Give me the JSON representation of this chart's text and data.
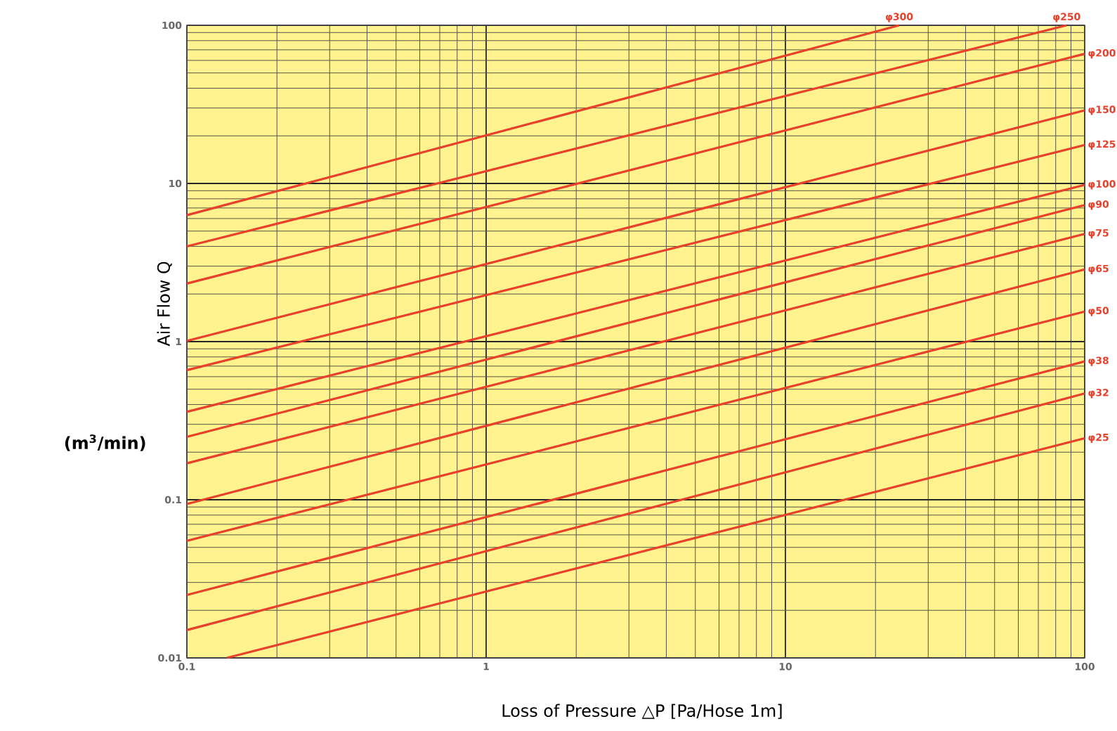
{
  "chart_data": {
    "type": "line",
    "xlabel": "Loss of Pressure △P [Pa/Hose 1m]",
    "ylabel": "Air Flow Q",
    "annotations": [
      "(m$^{3}$/min)"
    ],
    "log": "xy",
    "grid": true,
    "marker": "none",
    "line_style": "solid",
    "xlim": [
      0.1,
      100
    ],
    "ylim": [
      0.01,
      100
    ],
    "xticks": [
      0.1,
      1,
      10,
      100
    ],
    "yticks": [
      0.01,
      0.1,
      1,
      10,
      100
    ],
    "series": [
      {
        "name": "φ300",
        "color": "#e8402a",
        "x": [
          0.1,
          24
        ],
        "values": [
          6.3,
          100
        ]
      },
      {
        "name": "φ250",
        "color": "#e8402a",
        "x": [
          0.1,
          87
        ],
        "values": [
          4.0,
          100
        ]
      },
      {
        "name": "φ200",
        "color": "#e8402a",
        "x": [
          0.1,
          100
        ],
        "values": [
          2.33,
          66
        ]
      },
      {
        "name": "φ150",
        "color": "#e8402a",
        "x": [
          0.1,
          100
        ],
        "values": [
          1.01,
          29
        ]
      },
      {
        "name": "φ125",
        "color": "#e8402a",
        "x": [
          0.1,
          100
        ],
        "values": [
          0.66,
          17.5
        ]
      },
      {
        "name": "φ100",
        "color": "#e8402a",
        "x": [
          0.1,
          100
        ],
        "values": [
          0.36,
          9.8
        ]
      },
      {
        "name": "φ90",
        "color": "#e8402a",
        "x": [
          0.1,
          100
        ],
        "values": [
          0.25,
          7.3
        ]
      },
      {
        "name": "φ75",
        "color": "#e8402a",
        "x": [
          0.1,
          100
        ],
        "values": [
          0.17,
          4.8
        ]
      },
      {
        "name": "φ65",
        "color": "#e8402a",
        "x": [
          0.1,
          100
        ],
        "values": [
          0.094,
          2.86
        ]
      },
      {
        "name": "φ50",
        "color": "#e8402a",
        "x": [
          0.1,
          100
        ],
        "values": [
          0.055,
          1.55
        ]
      },
      {
        "name": "φ38",
        "color": "#e8402a",
        "x": [
          0.1,
          100
        ],
        "values": [
          0.025,
          0.75
        ]
      },
      {
        "name": "φ32",
        "color": "#e8402a",
        "x": [
          0.1,
          100
        ],
        "values": [
          0.015,
          0.47
        ]
      },
      {
        "name": "φ25",
        "color": "#e8402a",
        "x": [
          0.136,
          100
        ],
        "values": [
          0.01,
          0.245
        ]
      }
    ]
  }
}
